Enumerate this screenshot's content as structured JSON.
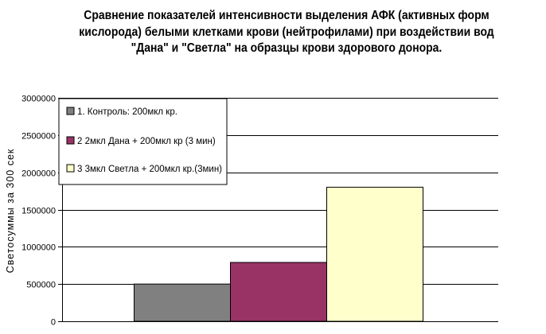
{
  "chart_data": {
    "type": "bar",
    "title_lines": [
      "Сравнение показателей интенсивности выделения АФК (активных форм",
      "кислорода) белыми клетками крови (нейтрофилами) при воздействии вод",
      "\"Дана\" и  \"Светла\"  на образцы крови здорового донора."
    ],
    "ylabel": "Светосуммы за 300 сек",
    "ylim": [
      0,
      3000000
    ],
    "yticks": [
      0,
      500000,
      1000000,
      1500000,
      2000000,
      2500000,
      3000000
    ],
    "ytick_labels": [
      "0",
      "500000",
      "1000000",
      "1500000",
      "2000000",
      "2500000",
      "3000000"
    ],
    "grid": true,
    "legend_position": "top-left",
    "series": [
      {
        "name": "1. Контроль: 200мкл кр.",
        "value": 500000,
        "color": "#808080"
      },
      {
        "name": "2 2мкл Дана + 200мкл кр (3 мин)",
        "value": 790000,
        "color": "#993366"
      },
      {
        "name": "3 3мкл Светла + 200мкл кр.(3мин)",
        "value": 1800000,
        "color": "#FFFFCC"
      }
    ]
  }
}
